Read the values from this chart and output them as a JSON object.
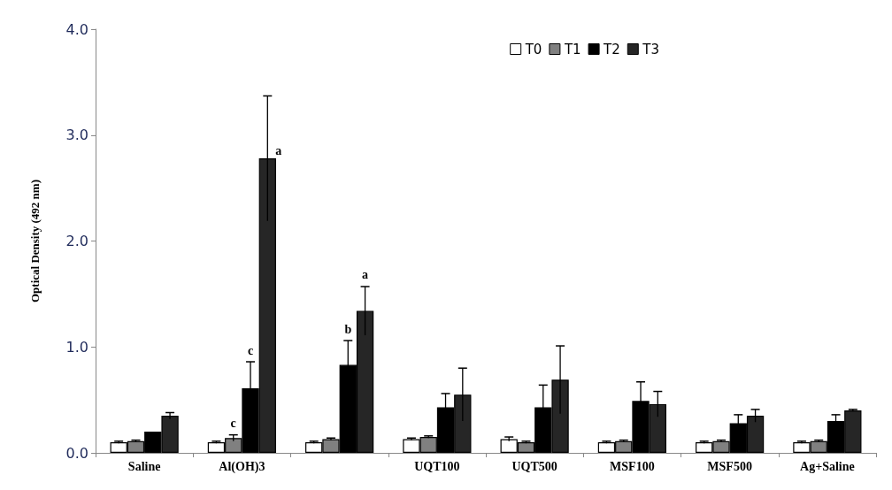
{
  "chart_data": {
    "type": "bar",
    "ylabel": "Optical Density (492 nm)",
    "categories": [
      "Saline",
      "Al(OH)3",
      null,
      "UQT100",
      "UQT500",
      "MSF100",
      "MSF500",
      "Ag+Saline"
    ],
    "ylim": [
      0,
      4
    ],
    "yticks": [
      {
        "value": 0,
        "label": "0.0"
      },
      {
        "value": 1,
        "label": "1.0"
      },
      {
        "value": 2,
        "label": "2.0"
      },
      {
        "value": 3,
        "label": "3.0"
      },
      {
        "value": 4,
        "label": "4.0"
      }
    ],
    "grid": false,
    "legend": "top right",
    "series": [
      {
        "name": "T0",
        "color": "#ffffff",
        "values": [
          0.1,
          0.1,
          0.1,
          0.13,
          0.13,
          0.1,
          0.1,
          0.1
        ],
        "errors": [
          0.01,
          0.01,
          0.01,
          0.01,
          0.02,
          0.01,
          0.01,
          0.01
        ]
      },
      {
        "name": "T1",
        "color": "#808080",
        "values": [
          0.11,
          0.14,
          0.13,
          0.15,
          0.1,
          0.11,
          0.11,
          0.11
        ],
        "errors": [
          0.01,
          0.03,
          0.01,
          0.01,
          0.01,
          0.01,
          0.01,
          0.01
        ],
        "value_labels": [
          null,
          "c",
          null,
          null,
          null,
          null,
          null,
          null
        ]
      },
      {
        "name": "T2",
        "color": "#000000",
        "values": [
          0.2,
          0.61,
          0.83,
          0.43,
          0.43,
          0.49,
          0.28,
          0.3
        ],
        "errors": [
          null,
          0.25,
          0.23,
          0.13,
          0.21,
          0.18,
          0.08,
          0.06
        ],
        "value_labels": [
          null,
          "c",
          "b",
          null,
          null,
          null,
          null,
          null
        ]
      },
      {
        "name": "T3",
        "color": "#262626",
        "values": [
          0.35,
          2.78,
          1.34,
          0.55,
          0.69,
          0.46,
          0.35,
          0.4
        ],
        "errors": [
          0.03,
          0.59,
          0.23,
          0.25,
          0.32,
          0.12,
          0.06,
          0.01
        ],
        "value_labels": [
          null,
          "a",
          "a",
          null,
          null,
          null,
          null,
          null
        ]
      }
    ]
  }
}
